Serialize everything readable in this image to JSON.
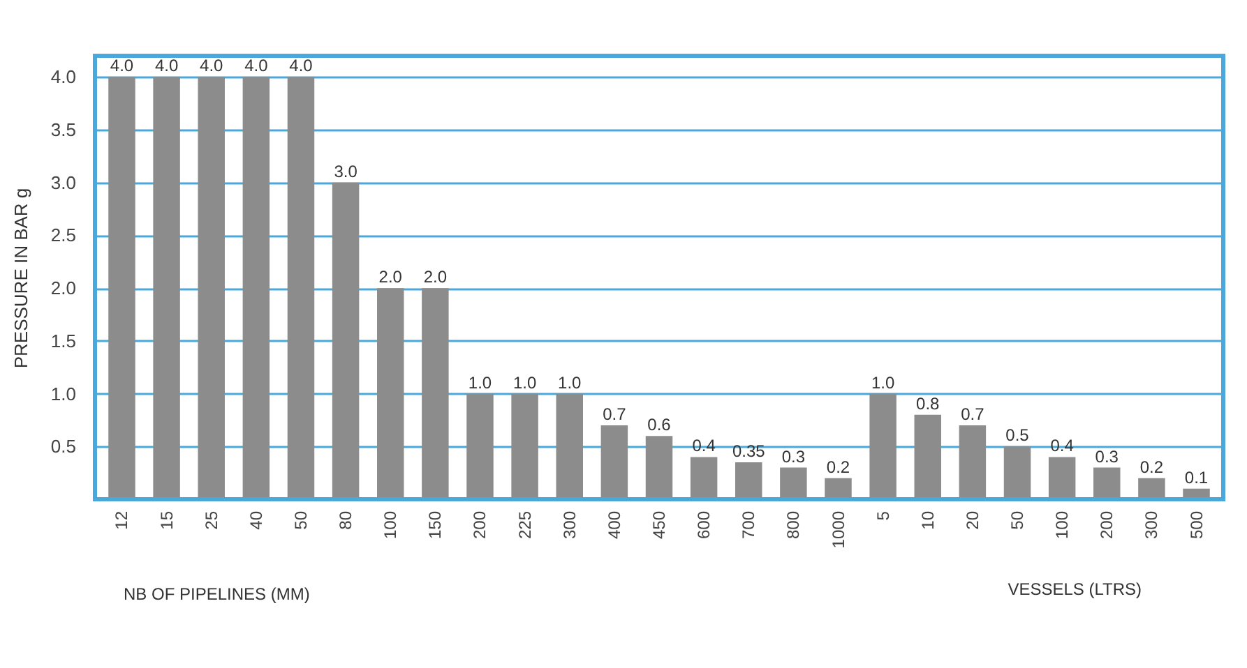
{
  "chart_data": {
    "type": "bar",
    "ylabel": "PRESSURE IN BAR g",
    "xlabel": "NB OF PIPELINES (MM)",
    "annotations": [
      "VESSELS (LTRS)"
    ],
    "categories": [
      "12",
      "15",
      "25",
      "40",
      "50",
      "80",
      "100",
      "150",
      "200",
      "225",
      "300",
      "400",
      "450",
      "600",
      "700",
      "800",
      "1000",
      "5",
      "10",
      "20",
      "50",
      "100",
      "200",
      "300",
      "500"
    ],
    "values": [
      4.0,
      4.0,
      4.0,
      4.0,
      4.0,
      3.0,
      2.0,
      2.0,
      1.0,
      1.0,
      1.0,
      0.7,
      0.6,
      0.4,
      0.35,
      0.3,
      0.2,
      1.0,
      0.8,
      0.7,
      0.5,
      0.4,
      0.3,
      0.2,
      0.1
    ],
    "value_labels": [
      "4.0",
      "4.0",
      "4.0",
      "4.0",
      "4.0",
      "3.0",
      "2.0",
      "2.0",
      "1.0",
      "1.0",
      "1.0",
      "0.7",
      "0.6",
      "0.4",
      "0.35",
      "0.3",
      "0.2",
      "1.0",
      "0.8",
      "0.7",
      "0.5",
      "0.4",
      "0.3",
      "0.2",
      "0.1"
    ],
    "color": "#8c8c8c",
    "ylim": [
      0,
      4.2
    ],
    "yticks": [
      {
        "value": 0.5,
        "label": "0.5"
      },
      {
        "value": 1,
        "label": "1.0"
      },
      {
        "value": 1.5,
        "label": "1.5"
      },
      {
        "value": 2,
        "label": "2.0"
      },
      {
        "value": 2.5,
        "label": "2.5"
      },
      {
        "value": 3,
        "label": "3.0"
      },
      {
        "value": 3.5,
        "label": "3.5"
      },
      {
        "value": 4,
        "label": "4.0"
      }
    ],
    "grid": "y"
  }
}
